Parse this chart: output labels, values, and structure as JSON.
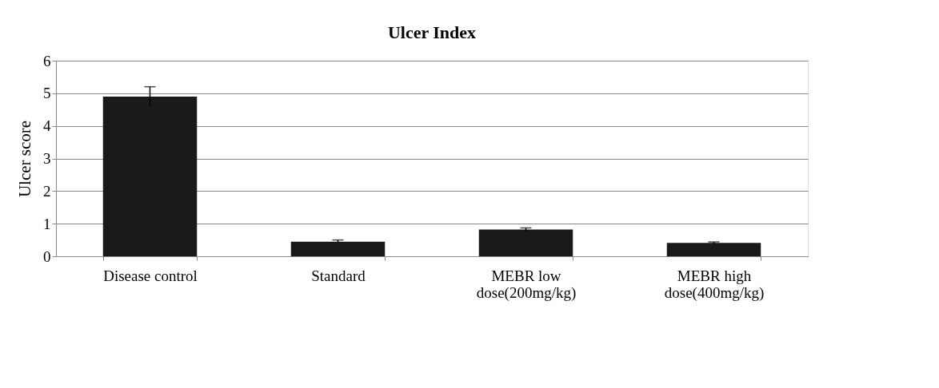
{
  "chart_data": {
    "type": "bar",
    "title": "Ulcer Index",
    "ylabel": "Ulcer score",
    "categories": [
      "Disease control",
      "Standard",
      "MEBR low\ndose(200mg/kg)",
      "MEBR high\ndose(400mg/kg)"
    ],
    "values": [
      4.9,
      0.45,
      0.82,
      0.41
    ],
    "errors": [
      0.3,
      0.05,
      0.05,
      0.03
    ],
    "color": "#1a1a1a",
    "ylim": [
      0,
      6
    ],
    "yticks": [
      0,
      1,
      2,
      3,
      4,
      5,
      6
    ],
    "grid": "y"
  }
}
